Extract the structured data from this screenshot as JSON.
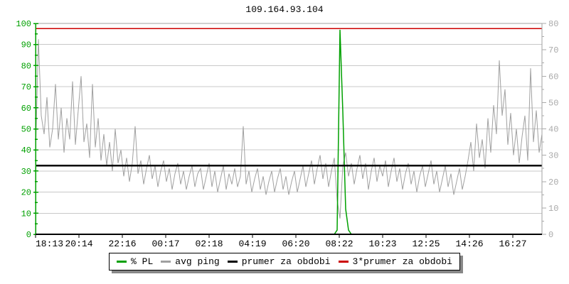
{
  "chart_data": {
    "type": "line",
    "title": "109.164.93.104",
    "grid": "horizontal gridlines at every 10 units of left axis, no vertical gridlines",
    "legend_position": "bottom center",
    "x_axis": {
      "labels": [
        "18:13",
        "20:14",
        "22:16",
        "00:17",
        "02:18",
        "04:19",
        "06:20",
        "08:22",
        "10:23",
        "12:25",
        "14:26",
        "16:27"
      ],
      "label_color": "#000000"
    },
    "left_axis": {
      "min": 0,
      "max": 100,
      "tick_major": 10,
      "tick_minor": 5,
      "color": "#00a000",
      "meaning": "% packet loss"
    },
    "right_axis": {
      "min": 0,
      "max": 80,
      "tick_major": 10,
      "tick_minor": 5,
      "color": "#aaaaaa",
      "meaning": "avg ping (ms)"
    },
    "frame_color": "#a0a0a0",
    "gridline_color": "#c8c8c8",
    "series": [
      {
        "name": "% PL",
        "axis": "left",
        "color": "#00a000",
        "baseline": 0,
        "spike_start_index": 105,
        "spike_values": [
          0,
          2,
          97,
          58,
          12,
          2,
          0
        ]
      },
      {
        "name": "avg ping",
        "axis": "right",
        "color": "#a0a0a0",
        "values": [
          30,
          74,
          45,
          38,
          52,
          33,
          40,
          57,
          36,
          48,
          31,
          44,
          36,
          58,
          34,
          47,
          60,
          35,
          42,
          29,
          57,
          33,
          44,
          28,
          38,
          26,
          35,
          24,
          40,
          27,
          32,
          22,
          29,
          20,
          27,
          41,
          23,
          28,
          19,
          25,
          30,
          21,
          26,
          18,
          24,
          28,
          20,
          25,
          17,
          23,
          27,
          19,
          24,
          17,
          22,
          26,
          18,
          23,
          25,
          17,
          22,
          27,
          18,
          24,
          16,
          21,
          26,
          17,
          23,
          19,
          25,
          18,
          22,
          41,
          19,
          24,
          16,
          21,
          25,
          17,
          22,
          15,
          20,
          24,
          16,
          21,
          25,
          17,
          22,
          15,
          20,
          24,
          16,
          21,
          26,
          18,
          23,
          28,
          19,
          25,
          30,
          21,
          27,
          18,
          24,
          29,
          13,
          6,
          26,
          31,
          22,
          27,
          19,
          25,
          30,
          21,
          27,
          17,
          24,
          29,
          20,
          26,
          22,
          28,
          18,
          24,
          29,
          20,
          25,
          17,
          23,
          27,
          19,
          24,
          16,
          22,
          26,
          18,
          23,
          28,
          19,
          24,
          16,
          21,
          26,
          18,
          23,
          15,
          20,
          25,
          17,
          22,
          28,
          35,
          24,
          42,
          29,
          36,
          25,
          44,
          31,
          49,
          38,
          66,
          45,
          55,
          34,
          46,
          30,
          40,
          27,
          37,
          45,
          28,
          63,
          35,
          47,
          31,
          38
        ]
      },
      {
        "name": "prumer za obdobi",
        "axis": "right",
        "type": "hline",
        "value": 26,
        "color": "#000000"
      },
      {
        "name": "3*prumer za obdobi",
        "axis": "right",
        "type": "hline",
        "value": 78,
        "color": "#cc0000"
      }
    ]
  },
  "legend": {
    "items": [
      {
        "label": "% PL",
        "color": "#00a000"
      },
      {
        "label": "avg ping",
        "color": "#a0a0a0"
      },
      {
        "label": "prumer za obdobi",
        "color": "#000000"
      },
      {
        "label": "3*prumer za obdobi",
        "color": "#cc0000"
      }
    ]
  }
}
